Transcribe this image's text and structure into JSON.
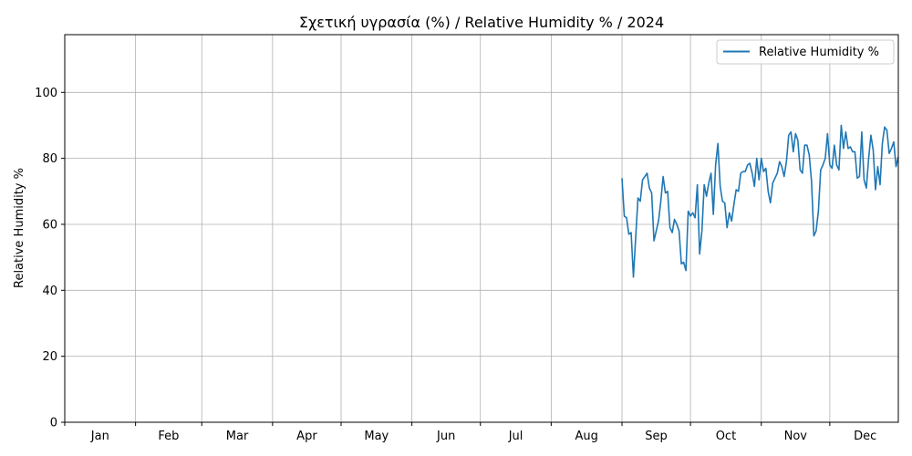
{
  "chart_data": {
    "type": "line",
    "title": "Σχετική υγρασία (%) / Relative Humidity % / 2024",
    "xlabel": "",
    "ylabel": "Relative Humidity %",
    "ylim": [
      0,
      117.5
    ],
    "yticks": [
      0,
      20,
      40,
      60,
      80,
      100
    ],
    "xlim": [
      "2024-01-01",
      "2024-12-31"
    ],
    "x_month_labels": [
      "Jan",
      "Feb",
      "Mar",
      "Apr",
      "May",
      "Jun",
      "Jul",
      "Aug",
      "Sep",
      "Oct",
      "Nov",
      "Dec"
    ],
    "grid": true,
    "legend": "top-right",
    "series_color": "#1f77b4",
    "series": [
      {
        "name": "Relative Humidity %",
        "x_start": "2024-09-01",
        "values": [
          74,
          62.5,
          62,
          57,
          57.5,
          44,
          56,
          68,
          67,
          73.5,
          74.5,
          75.5,
          71,
          69.5,
          55,
          58,
          61,
          67,
          74.5,
          69.5,
          70,
          59,
          57.5,
          61.5,
          60,
          58,
          48,
          48.5,
          46,
          64,
          62.5,
          63.5,
          62,
          72,
          51,
          58,
          72,
          68.5,
          72.5,
          75.5,
          63,
          78,
          84.5,
          71.5,
          67,
          66.5,
          59,
          63.5,
          61,
          66,
          70.5,
          70,
          75.5,
          76,
          76,
          78,
          78.5,
          75.5,
          71.5,
          80,
          73.5,
          80,
          76,
          77,
          70,
          66.5,
          72.5,
          74,
          75.5,
          79,
          77.5,
          74.5,
          79,
          87,
          88,
          82,
          87.5,
          85.5,
          76.5,
          75.5,
          84,
          84,
          81,
          73,
          56.5,
          58,
          64,
          76.5,
          78,
          80,
          87.5,
          78,
          77,
          84,
          78,
          76.5,
          90,
          83,
          88,
          83,
          83.5,
          82,
          82,
          74,
          74.5,
          88,
          73.5,
          71,
          80,
          87,
          82.5,
          70.5,
          77.5,
          72,
          84.5,
          89.5,
          88.5,
          81.5,
          83,
          85,
          77.5,
          80.5
        ]
      }
    ]
  }
}
